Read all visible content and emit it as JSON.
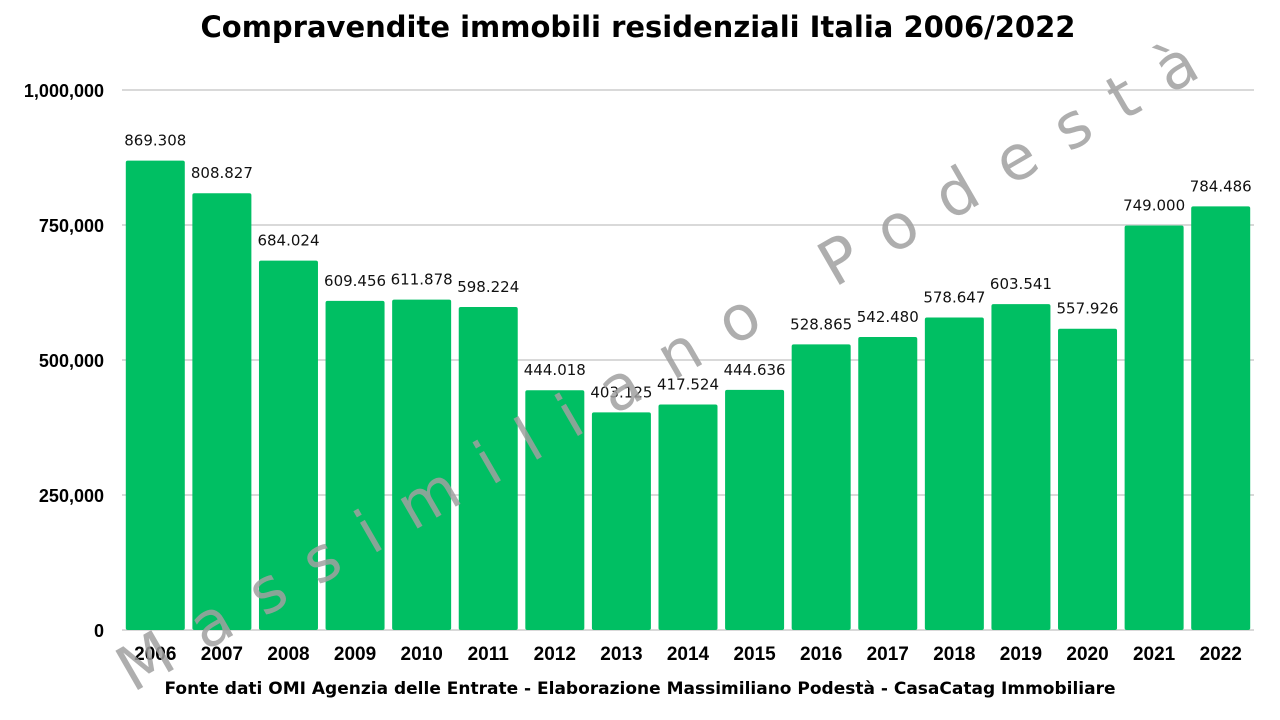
{
  "chart_data": {
    "type": "bar",
    "title": "Compravendite immobili residenziali Italia 2006/2022",
    "source_note": "Fonte dati OMI Agenzia delle Entrate - Elaborazione Massimiliano Podestà - CasaCatag Immobiliare",
    "watermark": "Massimiliano Podestà",
    "categories": [
      "2006",
      "2007",
      "2008",
      "2009",
      "2010",
      "2011",
      "2012",
      "2013",
      "2014",
      "2015",
      "2016",
      "2017",
      "2018",
      "2019",
      "2020",
      "2021",
      "2022"
    ],
    "values": [
      869308,
      808827,
      684024,
      609456,
      611878,
      598224,
      444018,
      403125,
      417524,
      444636,
      528865,
      542480,
      578647,
      603541,
      557926,
      749000,
      784486
    ],
    "data_labels": [
      "869.308",
      "808.827",
      "684.024",
      "609.456",
      "611.878",
      "598.224",
      "444.018",
      "403.125",
      "417.524",
      "444.636",
      "528.865",
      "542.480",
      "578.647",
      "603.541",
      "557.926",
      "749.000",
      "784.486"
    ],
    "yticks": [
      0,
      250000,
      500000,
      750000,
      1000000
    ],
    "ytick_labels": [
      "0",
      "250,000",
      "500,000",
      "750,000",
      "1,000,000"
    ],
    "ylim": [
      0,
      1000000
    ],
    "xlabel": "",
    "ylabel": "",
    "grid": true,
    "legend": "none",
    "bar_color": "#00bf63",
    "grid_color": "#d9d9d9"
  }
}
